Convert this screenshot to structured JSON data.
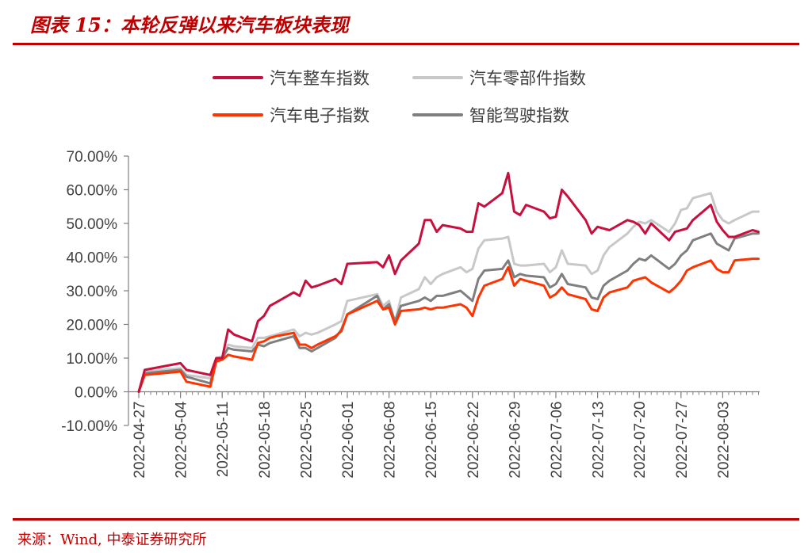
{
  "title": "图表 15：本轮反弹以来汽车板块表现",
  "source": "来源：Wind, 中泰证券研究所",
  "chart_data": {
    "type": "line",
    "title": "图表 15：本轮反弹以来汽车板块表现",
    "xlabel": "",
    "ylabel": "",
    "ylim": [
      -10,
      70
    ],
    "yticks": [
      "70.00%",
      "60.00%",
      "50.00%",
      "40.00%",
      "30.00%",
      "20.00%",
      "10.00%",
      "0.00%",
      "-10.00%"
    ],
    "yticks_values": [
      70,
      60,
      50,
      40,
      30,
      20,
      10,
      0,
      -10
    ],
    "xticks": [
      "2022-04-27",
      "2022-05-04",
      "2022-05-11",
      "2022-05-18",
      "2022-05-25",
      "2022-06-01",
      "2022-06-08",
      "2022-06-15",
      "2022-06-22",
      "2022-06-29",
      "2022-07-06",
      "2022-07-13",
      "2022-07-20",
      "2022-07-27",
      "2022-08-03"
    ],
    "x_start": "2022-04-27",
    "x_end": "2022-08-09",
    "grid": false,
    "legend_position": "top",
    "series": [
      {
        "name": "汽车整车指数",
        "color": "#c8103e",
        "points": [
          [
            "2022-04-27",
            0
          ],
          [
            "2022-04-28",
            6.5
          ],
          [
            "2022-05-04",
            8.5
          ],
          [
            "2022-05-05",
            6.5
          ],
          [
            "2022-05-09",
            5
          ],
          [
            "2022-05-10",
            10
          ],
          [
            "2022-05-11",
            10
          ],
          [
            "2022-05-12",
            18.5
          ],
          [
            "2022-05-13",
            17
          ],
          [
            "2022-05-16",
            15
          ],
          [
            "2022-05-17",
            21
          ],
          [
            "2022-05-18",
            22.5
          ],
          [
            "2022-05-19",
            25.5
          ],
          [
            "2022-05-20",
            26.5
          ],
          [
            "2022-05-23",
            29.5
          ],
          [
            "2022-05-24",
            28.5
          ],
          [
            "2022-05-25",
            33
          ],
          [
            "2022-05-26",
            31
          ],
          [
            "2022-05-27",
            31.5
          ],
          [
            "2022-05-30",
            33.5
          ],
          [
            "2022-05-31",
            32
          ],
          [
            "2022-06-01",
            38
          ],
          [
            "2022-06-06",
            38.5
          ],
          [
            "2022-06-07",
            37
          ],
          [
            "2022-06-08",
            40.5
          ],
          [
            "2022-06-09",
            35
          ],
          [
            "2022-06-10",
            39
          ],
          [
            "2022-06-13",
            44
          ],
          [
            "2022-06-14",
            51
          ],
          [
            "2022-06-15",
            51
          ],
          [
            "2022-06-16",
            47.5
          ],
          [
            "2022-06-17",
            49.5
          ],
          [
            "2022-06-20",
            48.5
          ],
          [
            "2022-06-21",
            47.5
          ],
          [
            "2022-06-22",
            47.5
          ],
          [
            "2022-06-23",
            56
          ],
          [
            "2022-06-24",
            55
          ],
          [
            "2022-06-27",
            59
          ],
          [
            "2022-06-28",
            65
          ],
          [
            "2022-06-29",
            53.5
          ],
          [
            "2022-06-30",
            52.5
          ],
          [
            "2022-07-01",
            55.5
          ],
          [
            "2022-07-04",
            53.5
          ],
          [
            "2022-07-05",
            51.5
          ],
          [
            "2022-07-06",
            52
          ],
          [
            "2022-07-07",
            60
          ],
          [
            "2022-07-08",
            58
          ],
          [
            "2022-07-11",
            51
          ],
          [
            "2022-07-12",
            47
          ],
          [
            "2022-07-13",
            49
          ],
          [
            "2022-07-14",
            48.5
          ],
          [
            "2022-07-15",
            48
          ],
          [
            "2022-07-18",
            51
          ],
          [
            "2022-07-19",
            50.5
          ],
          [
            "2022-07-20",
            49.5
          ],
          [
            "2022-07-21",
            47
          ],
          [
            "2022-07-22",
            50
          ],
          [
            "2022-07-25",
            45
          ],
          [
            "2022-07-26",
            47.5
          ],
          [
            "2022-07-27",
            48
          ],
          [
            "2022-07-28",
            48.5
          ],
          [
            "2022-07-29",
            51
          ],
          [
            "2022-08-01",
            55.5
          ],
          [
            "2022-08-02",
            50.5
          ],
          [
            "2022-08-03",
            48
          ],
          [
            "2022-08-04",
            46
          ],
          [
            "2022-08-05",
            46
          ],
          [
            "2022-08-08",
            48
          ],
          [
            "2022-08-09",
            47.5
          ]
        ]
      },
      {
        "name": "汽车零部件指数",
        "color": "#c8c8c8",
        "points": [
          [
            "2022-04-27",
            0
          ],
          [
            "2022-04-28",
            6
          ],
          [
            "2022-05-04",
            7
          ],
          [
            "2022-05-05",
            5
          ],
          [
            "2022-05-09",
            4
          ],
          [
            "2022-05-10",
            10
          ],
          [
            "2022-05-11",
            10.5
          ],
          [
            "2022-05-12",
            14
          ],
          [
            "2022-05-13",
            13.5
          ],
          [
            "2022-05-16",
            13
          ],
          [
            "2022-05-17",
            16
          ],
          [
            "2022-05-18",
            16
          ],
          [
            "2022-05-19",
            16.5
          ],
          [
            "2022-05-20",
            17
          ],
          [
            "2022-05-23",
            18.5
          ],
          [
            "2022-05-24",
            16.5
          ],
          [
            "2022-05-25",
            17.5
          ],
          [
            "2022-05-26",
            17
          ],
          [
            "2022-05-27",
            17.5
          ],
          [
            "2022-05-30",
            20
          ],
          [
            "2022-05-31",
            21
          ],
          [
            "2022-06-01",
            27
          ],
          [
            "2022-06-06",
            29
          ],
          [
            "2022-06-07",
            25.5
          ],
          [
            "2022-06-08",
            27
          ],
          [
            "2022-06-09",
            20.5
          ],
          [
            "2022-06-10",
            28
          ],
          [
            "2022-06-13",
            30.5
          ],
          [
            "2022-06-14",
            34
          ],
          [
            "2022-06-15",
            32
          ],
          [
            "2022-06-16",
            34
          ],
          [
            "2022-06-17",
            35
          ],
          [
            "2022-06-20",
            37
          ],
          [
            "2022-06-21",
            35.5
          ],
          [
            "2022-06-22",
            36.5
          ],
          [
            "2022-06-23",
            42.5
          ],
          [
            "2022-06-24",
            45
          ],
          [
            "2022-06-27",
            45.5
          ],
          [
            "2022-06-28",
            46
          ],
          [
            "2022-06-29",
            38
          ],
          [
            "2022-06-30",
            37.5
          ],
          [
            "2022-07-01",
            37.5
          ],
          [
            "2022-07-04",
            38
          ],
          [
            "2022-07-05",
            35.5
          ],
          [
            "2022-07-06",
            37
          ],
          [
            "2022-07-07",
            42
          ],
          [
            "2022-07-08",
            38
          ],
          [
            "2022-07-11",
            37.5
          ],
          [
            "2022-07-12",
            35
          ],
          [
            "2022-07-13",
            36
          ],
          [
            "2022-07-14",
            40.5
          ],
          [
            "2022-07-15",
            43
          ],
          [
            "2022-07-18",
            47
          ],
          [
            "2022-07-19",
            49
          ],
          [
            "2022-07-20",
            50.5
          ],
          [
            "2022-07-21",
            50
          ],
          [
            "2022-07-22",
            51
          ],
          [
            "2022-07-25",
            47.5
          ],
          [
            "2022-07-26",
            50
          ],
          [
            "2022-07-27",
            54
          ],
          [
            "2022-07-28",
            54.5
          ],
          [
            "2022-07-29",
            57.5
          ],
          [
            "2022-08-01",
            59
          ],
          [
            "2022-08-02",
            53.5
          ],
          [
            "2022-08-03",
            51
          ],
          [
            "2022-08-04",
            50
          ],
          [
            "2022-08-05",
            51
          ],
          [
            "2022-08-08",
            53.5
          ],
          [
            "2022-08-09",
            53.5
          ]
        ]
      },
      {
        "name": "汽车电子指数",
        "color": "#ff3300",
        "points": [
          [
            "2022-04-27",
            0
          ],
          [
            "2022-04-28",
            5
          ],
          [
            "2022-05-04",
            6
          ],
          [
            "2022-05-05",
            3
          ],
          [
            "2022-05-09",
            1.5
          ],
          [
            "2022-05-10",
            9
          ],
          [
            "2022-05-11",
            9.5
          ],
          [
            "2022-05-12",
            11
          ],
          [
            "2022-05-13",
            10.5
          ],
          [
            "2022-05-16",
            9.5
          ],
          [
            "2022-05-17",
            14.5
          ],
          [
            "2022-05-18",
            15
          ],
          [
            "2022-05-19",
            16
          ],
          [
            "2022-05-20",
            16.5
          ],
          [
            "2022-05-23",
            17.5
          ],
          [
            "2022-05-24",
            14
          ],
          [
            "2022-05-25",
            14
          ],
          [
            "2022-05-26",
            13
          ],
          [
            "2022-05-27",
            14
          ],
          [
            "2022-05-30",
            16.5
          ],
          [
            "2022-05-31",
            18
          ],
          [
            "2022-06-01",
            23
          ],
          [
            "2022-06-06",
            27
          ],
          [
            "2022-06-07",
            24.5
          ],
          [
            "2022-06-08",
            25
          ],
          [
            "2022-06-09",
            20
          ],
          [
            "2022-06-10",
            24
          ],
          [
            "2022-06-13",
            24.5
          ],
          [
            "2022-06-14",
            25
          ],
          [
            "2022-06-15",
            24.5
          ],
          [
            "2022-06-16",
            25
          ],
          [
            "2022-06-17",
            25
          ],
          [
            "2022-06-20",
            26
          ],
          [
            "2022-06-21",
            25
          ],
          [
            "2022-06-22",
            22.5
          ],
          [
            "2022-06-23",
            28
          ],
          [
            "2022-06-24",
            31.5
          ],
          [
            "2022-06-27",
            33.5
          ],
          [
            "2022-06-28",
            37
          ],
          [
            "2022-06-29",
            31.5
          ],
          [
            "2022-06-30",
            33.5
          ],
          [
            "2022-07-01",
            33
          ],
          [
            "2022-07-04",
            31.5
          ],
          [
            "2022-07-05",
            28
          ],
          [
            "2022-07-06",
            29
          ],
          [
            "2022-07-07",
            31
          ],
          [
            "2022-07-08",
            29
          ],
          [
            "2022-07-11",
            27.5
          ],
          [
            "2022-07-12",
            24.5
          ],
          [
            "2022-07-13",
            24
          ],
          [
            "2022-07-14",
            28
          ],
          [
            "2022-07-15",
            29.5
          ],
          [
            "2022-07-18",
            31
          ],
          [
            "2022-07-19",
            33
          ],
          [
            "2022-07-20",
            33.5
          ],
          [
            "2022-07-21",
            34
          ],
          [
            "2022-07-22",
            32.5
          ],
          [
            "2022-07-25",
            29.5
          ],
          [
            "2022-07-26",
            31
          ],
          [
            "2022-07-27",
            33
          ],
          [
            "2022-07-28",
            36
          ],
          [
            "2022-07-29",
            37
          ],
          [
            "2022-08-01",
            39
          ],
          [
            "2022-08-02",
            36.5
          ],
          [
            "2022-08-03",
            35.5
          ],
          [
            "2022-08-04",
            35.5
          ],
          [
            "2022-08-05",
            39
          ],
          [
            "2022-08-08",
            39.5
          ],
          [
            "2022-08-09",
            39.5
          ]
        ]
      },
      {
        "name": "智能驾驶指数",
        "color": "#7f7f7f",
        "points": [
          [
            "2022-04-27",
            0
          ],
          [
            "2022-04-28",
            5.5
          ],
          [
            "2022-05-04",
            6.5
          ],
          [
            "2022-05-05",
            4.5
          ],
          [
            "2022-05-09",
            2.5
          ],
          [
            "2022-05-10",
            9.5
          ],
          [
            "2022-05-11",
            10
          ],
          [
            "2022-05-12",
            13
          ],
          [
            "2022-05-13",
            12.5
          ],
          [
            "2022-05-16",
            12
          ],
          [
            "2022-05-17",
            14
          ],
          [
            "2022-05-18",
            13.5
          ],
          [
            "2022-05-19",
            14.5
          ],
          [
            "2022-05-20",
            15
          ],
          [
            "2022-05-23",
            16.5
          ],
          [
            "2022-05-24",
            13
          ],
          [
            "2022-05-25",
            13
          ],
          [
            "2022-05-26",
            12
          ],
          [
            "2022-05-27",
            13
          ],
          [
            "2022-05-30",
            16
          ],
          [
            "2022-05-31",
            18.5
          ],
          [
            "2022-06-01",
            23
          ],
          [
            "2022-06-06",
            28.5
          ],
          [
            "2022-06-07",
            24.5
          ],
          [
            "2022-06-08",
            26
          ],
          [
            "2022-06-09",
            21
          ],
          [
            "2022-06-10",
            25.5
          ],
          [
            "2022-06-13",
            27
          ],
          [
            "2022-06-14",
            28
          ],
          [
            "2022-06-15",
            27
          ],
          [
            "2022-06-16",
            28.5
          ],
          [
            "2022-06-17",
            28.5
          ],
          [
            "2022-06-20",
            30
          ],
          [
            "2022-06-21",
            28.5
          ],
          [
            "2022-06-22",
            27
          ],
          [
            "2022-06-23",
            33.5
          ],
          [
            "2022-06-24",
            36
          ],
          [
            "2022-06-27",
            36.5
          ],
          [
            "2022-06-28",
            39
          ],
          [
            "2022-06-29",
            34
          ],
          [
            "2022-06-30",
            35
          ],
          [
            "2022-07-01",
            34.5
          ],
          [
            "2022-07-04",
            34
          ],
          [
            "2022-07-05",
            31
          ],
          [
            "2022-07-06",
            32
          ],
          [
            "2022-07-07",
            35
          ],
          [
            "2022-07-08",
            32
          ],
          [
            "2022-07-11",
            31
          ],
          [
            "2022-07-12",
            28
          ],
          [
            "2022-07-13",
            27.5
          ],
          [
            "2022-07-14",
            31.5
          ],
          [
            "2022-07-15",
            33
          ],
          [
            "2022-07-18",
            36
          ],
          [
            "2022-07-19",
            38
          ],
          [
            "2022-07-20",
            39.5
          ],
          [
            "2022-07-21",
            39
          ],
          [
            "2022-07-22",
            40.5
          ],
          [
            "2022-07-25",
            36.5
          ],
          [
            "2022-07-26",
            38
          ],
          [
            "2022-07-27",
            40.5
          ],
          [
            "2022-07-28",
            42
          ],
          [
            "2022-07-29",
            45
          ],
          [
            "2022-08-01",
            47
          ],
          [
            "2022-08-02",
            44
          ],
          [
            "2022-08-03",
            43
          ],
          [
            "2022-08-04",
            42
          ],
          [
            "2022-08-05",
            45.5
          ],
          [
            "2022-08-08",
            47
          ],
          [
            "2022-08-09",
            47
          ]
        ]
      }
    ]
  }
}
